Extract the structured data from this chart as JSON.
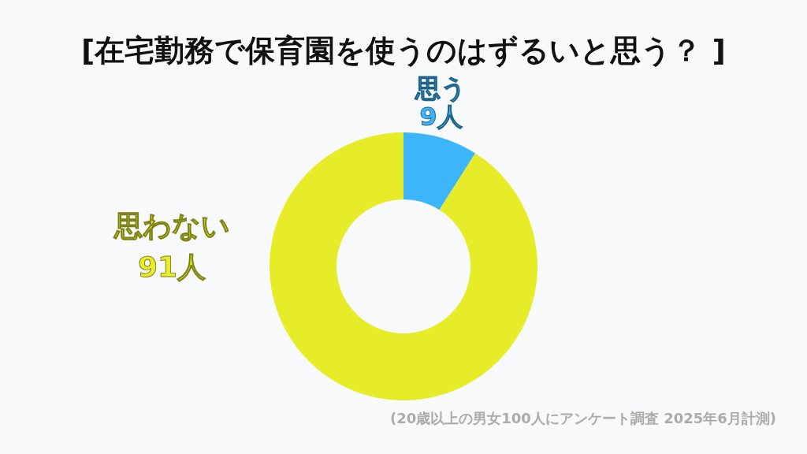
{
  "chart_data": {
    "type": "donut",
    "title": "[在宅勤務で保育園を使うのはずるいと思う？ ]",
    "categories": [
      "思う",
      "思わない"
    ],
    "values": [
      9,
      91
    ],
    "colors": [
      "#3db5f9",
      "#e6ec27"
    ],
    "value_labels": [
      "9人",
      "91人"
    ],
    "annotations": [
      "(20歳以上の男女100人にアンケート調査 2025年6月計測)"
    ]
  }
}
